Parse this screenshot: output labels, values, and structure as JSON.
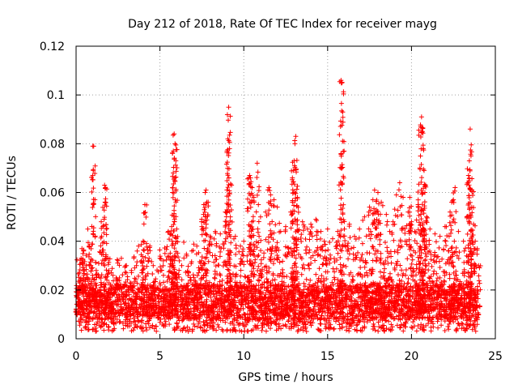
{
  "chart_data": {
    "type": "scatter",
    "title": "Day 212 of 2018, Rate Of TEC Index for receiver mayg",
    "xlabel": "GPS time / hours",
    "ylabel": "ROTI / TECUs",
    "xlim": [
      0,
      25
    ],
    "ylim": [
      0,
      0.12
    ],
    "xticks": [
      0,
      5,
      10,
      15,
      20,
      25
    ],
    "xtick_labels": [
      "0",
      "5",
      "10",
      "15",
      "20",
      "25"
    ],
    "yticks": [
      0,
      0.02,
      0.04,
      0.06,
      0.08,
      0.1,
      0.12
    ],
    "ytick_labels": [
      "0",
      "0.02",
      "0.04",
      "0.06",
      "0.08",
      "0.1",
      "0.12"
    ],
    "grid": true,
    "marker": "plus",
    "series": [
      {
        "name": "ROTI",
        "color": "#ff0000",
        "points": [
          [
            0.0,
            0.012
          ],
          [
            0.1,
            0.02
          ],
          [
            0.2,
            0.027
          ],
          [
            0.3,
            0.033
          ],
          [
            0.35,
            0.037
          ],
          [
            0.45,
            0.036
          ],
          [
            0.6,
            0.03
          ],
          [
            0.7,
            0.045
          ],
          [
            0.8,
            0.038
          ],
          [
            1.0,
            0.079
          ],
          [
            1.05,
            0.079
          ],
          [
            1.2,
            0.028
          ],
          [
            1.5,
            0.048
          ],
          [
            1.6,
            0.046
          ],
          [
            1.7,
            0.063
          ],
          [
            1.75,
            0.062
          ],
          [
            1.8,
            0.045
          ],
          [
            1.9,
            0.033
          ],
          [
            2.2,
            0.026
          ],
          [
            2.5,
            0.032
          ],
          [
            2.7,
            0.033
          ],
          [
            3.0,
            0.03
          ],
          [
            3.3,
            0.028
          ],
          [
            3.6,
            0.03
          ],
          [
            3.9,
            0.032
          ],
          [
            4.0,
            0.04
          ],
          [
            4.1,
            0.055
          ],
          [
            4.2,
            0.039
          ],
          [
            4.4,
            0.038
          ],
          [
            4.6,
            0.03
          ],
          [
            5.0,
            0.033
          ],
          [
            5.3,
            0.035
          ],
          [
            5.5,
            0.044
          ],
          [
            5.6,
            0.043
          ],
          [
            5.7,
            0.046
          ],
          [
            5.75,
            0.062
          ],
          [
            5.8,
            0.077
          ],
          [
            5.85,
            0.084
          ],
          [
            5.9,
            0.08
          ],
          [
            5.95,
            0.073
          ],
          [
            6.0,
            0.045
          ],
          [
            6.3,
            0.03
          ],
          [
            6.6,
            0.034
          ],
          [
            6.9,
            0.036
          ],
          [
            7.2,
            0.038
          ],
          [
            7.5,
            0.046
          ],
          [
            7.6,
            0.051
          ],
          [
            7.7,
            0.06
          ],
          [
            7.75,
            0.061
          ],
          [
            7.8,
            0.056
          ],
          [
            8.0,
            0.042
          ],
          [
            8.3,
            0.044
          ],
          [
            8.6,
            0.043
          ],
          [
            8.9,
            0.052
          ],
          [
            9.0,
            0.077
          ],
          [
            9.05,
            0.082
          ],
          [
            9.1,
            0.095
          ],
          [
            9.15,
            0.078
          ],
          [
            9.2,
            0.05
          ],
          [
            9.5,
            0.042
          ],
          [
            9.8,
            0.038
          ],
          [
            10.0,
            0.04
          ],
          [
            10.3,
            0.066
          ],
          [
            10.35,
            0.067
          ],
          [
            10.4,
            0.066
          ],
          [
            10.5,
            0.062
          ],
          [
            10.6,
            0.058
          ],
          [
            10.8,
            0.072
          ],
          [
            11.0,
            0.05
          ],
          [
            11.3,
            0.052
          ],
          [
            11.5,
            0.062
          ],
          [
            11.6,
            0.059
          ],
          [
            11.8,
            0.057
          ],
          [
            12.0,
            0.054
          ],
          [
            12.2,
            0.044
          ],
          [
            12.5,
            0.046
          ],
          [
            12.8,
            0.052
          ],
          [
            12.9,
            0.066
          ],
          [
            12.95,
            0.069
          ],
          [
            13.0,
            0.073
          ],
          [
            13.05,
            0.08
          ],
          [
            13.1,
            0.083
          ],
          [
            13.2,
            0.058
          ],
          [
            13.5,
            0.048
          ],
          [
            13.8,
            0.045
          ],
          [
            14.0,
            0.047
          ],
          [
            14.3,
            0.049
          ],
          [
            14.6,
            0.044
          ],
          [
            14.8,
            0.04
          ],
          [
            15.0,
            0.045
          ],
          [
            15.3,
            0.041
          ],
          [
            15.6,
            0.044
          ],
          [
            15.8,
            0.106
          ],
          [
            15.85,
            0.105
          ],
          [
            15.9,
            0.093
          ],
          [
            16.0,
            0.045
          ],
          [
            16.3,
            0.047
          ],
          [
            16.6,
            0.042
          ],
          [
            16.9,
            0.045
          ],
          [
            17.2,
            0.05
          ],
          [
            17.5,
            0.054
          ],
          [
            17.7,
            0.057
          ],
          [
            17.8,
            0.061
          ],
          [
            17.9,
            0.052
          ],
          [
            18.0,
            0.06
          ],
          [
            18.2,
            0.056
          ],
          [
            18.5,
            0.051
          ],
          [
            18.7,
            0.044
          ],
          [
            18.9,
            0.048
          ],
          [
            19.1,
            0.059
          ],
          [
            19.3,
            0.064
          ],
          [
            19.5,
            0.058
          ],
          [
            19.8,
            0.052
          ],
          [
            19.9,
            0.058
          ],
          [
            20.0,
            0.048
          ],
          [
            20.2,
            0.044
          ],
          [
            20.4,
            0.055
          ],
          [
            20.5,
            0.07
          ],
          [
            20.55,
            0.087
          ],
          [
            20.6,
            0.091
          ],
          [
            20.65,
            0.085
          ],
          [
            20.7,
            0.078
          ],
          [
            20.75,
            0.069
          ],
          [
            20.8,
            0.06
          ],
          [
            20.9,
            0.05
          ],
          [
            21.1,
            0.045
          ],
          [
            21.4,
            0.043
          ],
          [
            21.7,
            0.042
          ],
          [
            22.0,
            0.046
          ],
          [
            22.3,
            0.052
          ],
          [
            22.4,
            0.056
          ],
          [
            22.5,
            0.057
          ],
          [
            22.6,
            0.062
          ],
          [
            22.8,
            0.044
          ],
          [
            23.1,
            0.04
          ],
          [
            23.3,
            0.05
          ],
          [
            23.4,
            0.067
          ],
          [
            23.45,
            0.073
          ],
          [
            23.5,
            0.086
          ],
          [
            23.55,
            0.075
          ],
          [
            23.6,
            0.061
          ],
          [
            23.7,
            0.047
          ],
          [
            23.8,
            0.04
          ],
          [
            24.0,
            0.03
          ]
        ]
      }
    ],
    "noise_band": {
      "color": "#ff0000",
      "x_range": [
        0,
        24
      ],
      "count": 3800,
      "y_floor": 0.003,
      "y_typical_low": 0.008,
      "y_typical_high": 0.022
    }
  }
}
